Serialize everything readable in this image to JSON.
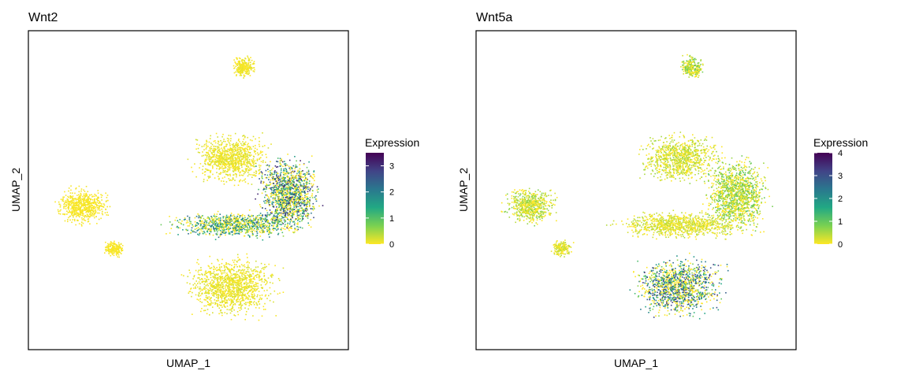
{
  "chart_data": [
    {
      "type": "scatter",
      "title": "Wnt2",
      "xlabel": "UMAP_1",
      "ylabel": "UMAP_2",
      "legend": {
        "title": "Expression",
        "ticks": [
          0,
          1,
          2,
          3
        ],
        "range": [
          0,
          3.5
        ],
        "position": "right"
      },
      "colormap": [
        "#FDE725",
        "#7AD151",
        "#22A884",
        "#2A788E",
        "#414487",
        "#440154"
      ],
      "grid": false,
      "series": [
        {
          "cluster": "top-island",
          "expr_mean": 0.1
        },
        {
          "cluster": "left-cluster",
          "expr_mean": 0.05
        },
        {
          "cluster": "small-left-blob",
          "expr_mean": 0.05
        },
        {
          "cluster": "upper-central",
          "expr_mean": 0.15
        },
        {
          "cluster": "right-lobe",
          "expr_mean": 1.9
        },
        {
          "cluster": "central-band",
          "expr_mean": 1.4
        },
        {
          "cluster": "bottom-cluster",
          "expr_mean": 0.15
        }
      ]
    },
    {
      "type": "scatter",
      "title": "Wnt5a",
      "xlabel": "UMAP_1",
      "ylabel": "UMAP_2",
      "legend": {
        "title": "Expression",
        "ticks": [
          0,
          1,
          2,
          3,
          4
        ],
        "range": [
          0,
          4
        ],
        "position": "right"
      },
      "colormap": [
        "#FDE725",
        "#7AD151",
        "#22A884",
        "#2A788E",
        "#414487",
        "#440154"
      ],
      "grid": false,
      "series": [
        {
          "cluster": "top-island",
          "expr_mean": 0.6
        },
        {
          "cluster": "left-cluster",
          "expr_mean": 0.5
        },
        {
          "cluster": "small-left-blob",
          "expr_mean": 0.3
        },
        {
          "cluster": "upper-central",
          "expr_mean": 0.4
        },
        {
          "cluster": "right-lobe",
          "expr_mean": 0.7
        },
        {
          "cluster": "central-band",
          "expr_mean": 0.3
        },
        {
          "cluster": "bottom-cluster",
          "expr_mean": 2.1
        }
      ]
    }
  ]
}
